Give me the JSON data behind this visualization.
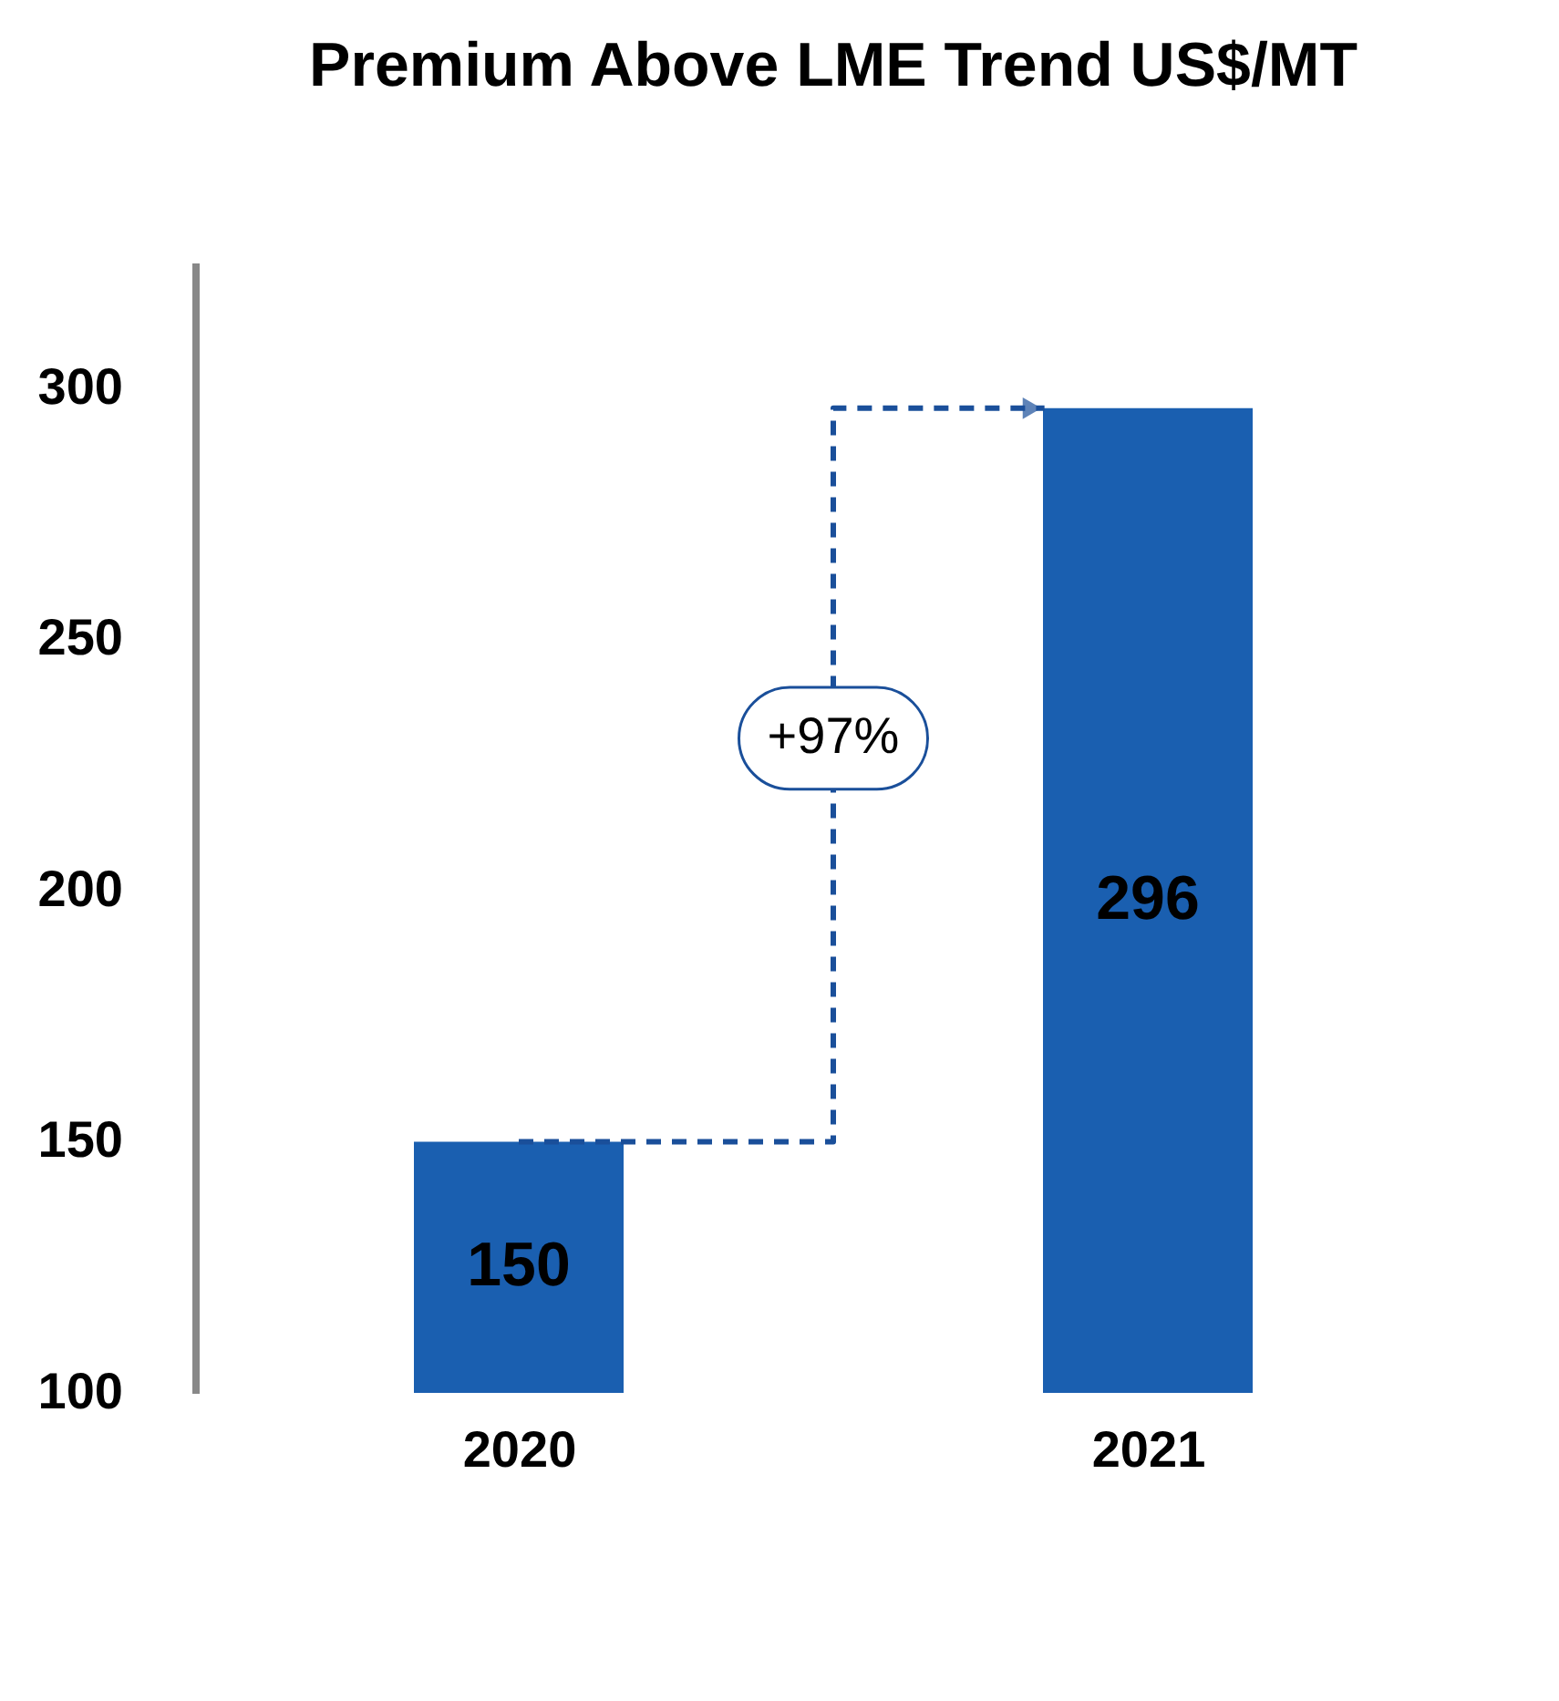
{
  "chart_data": {
    "type": "bar",
    "title": "Premium Above LME Trend US$/MT",
    "categories": [
      "2020",
      "2021"
    ],
    "values": [
      150,
      296
    ],
    "color": "#1a5fb0",
    "ylim": [
      100,
      325
    ],
    "yticks": [
      100,
      150,
      200,
      250,
      300
    ],
    "data_labels": true,
    "annotations": [
      "+97%"
    ]
  }
}
